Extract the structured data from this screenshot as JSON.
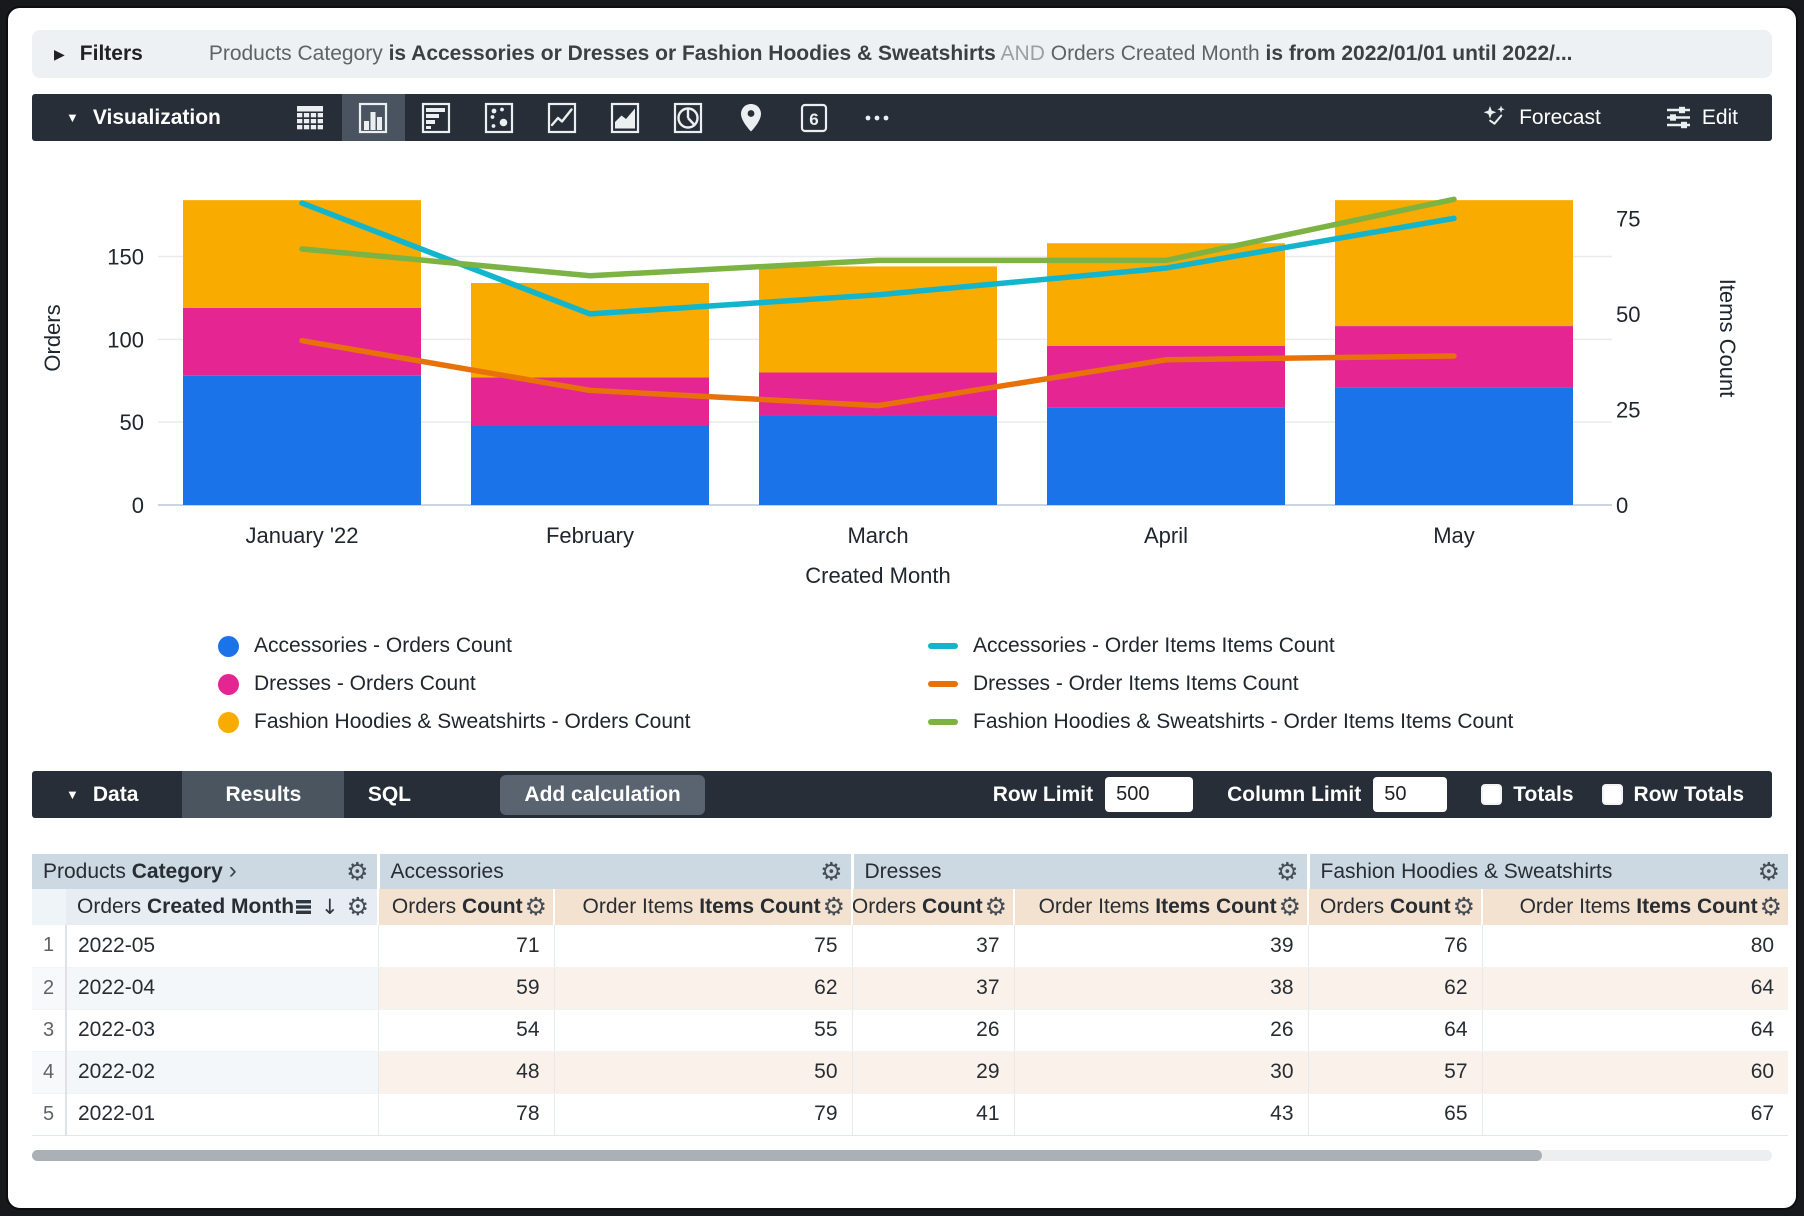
{
  "filters": {
    "label": "Filters",
    "segments": [
      {
        "text": "Products Category ",
        "style": "normal"
      },
      {
        "text": "is Accessories or Dresses or Fashion Hoodies & Sweatshirts",
        "style": "bold"
      },
      {
        "text": " AND ",
        "style": "dim"
      },
      {
        "text": "Orders Created Month ",
        "style": "normal"
      },
      {
        "text": "is from 2022/01/01 until 2022/...",
        "style": "bold"
      }
    ]
  },
  "viz_toolbar": {
    "title": "Visualization",
    "icons": [
      {
        "name": "table-chart-icon",
        "selected": false
      },
      {
        "name": "column-chart-icon",
        "selected": true
      },
      {
        "name": "bar-chart-icon",
        "selected": false
      },
      {
        "name": "scatter-chart-icon",
        "selected": false
      },
      {
        "name": "line-chart-icon",
        "selected": false
      },
      {
        "name": "area-chart-icon",
        "selected": false
      },
      {
        "name": "pie-chart-icon",
        "selected": false
      },
      {
        "name": "map-pin-icon",
        "selected": false
      },
      {
        "name": "single-value-icon",
        "selected": false
      },
      {
        "name": "more-viz-types-icon",
        "selected": false
      }
    ],
    "forecast_label": "Forecast",
    "edit_label": "Edit"
  },
  "chart_data": {
    "type": "combo: stacked bar (left axis) + line (right axis)",
    "categories": [
      "January '22",
      "February",
      "March",
      "April",
      "May"
    ],
    "x_axis_label": "Created Month",
    "left_axis": {
      "title": "Orders",
      "ticks": [
        0,
        50,
        100,
        150
      ],
      "max": 201.6
    },
    "right_axis": {
      "title": "Items Count",
      "ticks": [
        0,
        25,
        50,
        75
      ],
      "max": 87.4
    },
    "bar_series": [
      {
        "name": "Accessories - Orders Count",
        "color": "#1a73e8",
        "values": [
          78,
          48,
          54,
          59,
          71
        ]
      },
      {
        "name": "Dresses - Orders Count",
        "color": "#e52592",
        "values": [
          41,
          29,
          26,
          37,
          37
        ]
      },
      {
        "name": "Fashion Hoodies & Sweatshirts - Orders Count",
        "color": "#f9ab00",
        "values": [
          65,
          57,
          64,
          62,
          76
        ]
      }
    ],
    "line_series": [
      {
        "name": "Accessories - Order Items Items Count",
        "color": "#12b5cb",
        "values": [
          79,
          50,
          55,
          62,
          75
        ]
      },
      {
        "name": "Dresses - Order Items Items Count",
        "color": "#e8710a",
        "values": [
          43,
          30,
          26,
          38,
          39
        ]
      },
      {
        "name": "Fashion Hoodies & Sweatshirts - Order Items Items Count",
        "color": "#7cb342",
        "values": [
          67,
          60,
          64,
          64,
          80
        ]
      }
    ],
    "grid": "horizontal gridlines at left-axis ticks",
    "legend_position": "bottom, two columns"
  },
  "data_toolbar": {
    "title": "Data",
    "tabs": [
      {
        "label": "Results",
        "selected": true
      },
      {
        "label": "SQL",
        "selected": false
      }
    ],
    "add_calculation_label": "Add calculation",
    "row_limit_label": "Row Limit",
    "row_limit_value": "500",
    "column_limit_label": "Column Limit",
    "column_limit_value": "50",
    "totals_label": "Totals",
    "totals_checked": false,
    "row_totals_label": "Row Totals",
    "row_totals_checked": false
  },
  "table": {
    "dimension_group": {
      "normal": "Products ",
      "bold": "Category"
    },
    "measure_groups": [
      "Accessories",
      "Dresses",
      "Fashion Hoodies & Sweatshirts"
    ],
    "dimension_header": {
      "normal": "Orders ",
      "bold": "Created Month"
    },
    "measure_headers": [
      {
        "normal": "Orders ",
        "bold": "Count"
      },
      {
        "normal": "Order Items ",
        "bold": "Items Count"
      }
    ],
    "rows": [
      {
        "num": "1",
        "dim": "2022-05",
        "values": [
          71,
          75,
          37,
          39,
          76,
          80
        ]
      },
      {
        "num": "2",
        "dim": "2022-04",
        "values": [
          59,
          62,
          37,
          38,
          62,
          64
        ]
      },
      {
        "num": "3",
        "dim": "2022-03",
        "values": [
          54,
          55,
          26,
          26,
          64,
          64
        ]
      },
      {
        "num": "4",
        "dim": "2022-02",
        "values": [
          48,
          50,
          29,
          30,
          57,
          60
        ]
      },
      {
        "num": "5",
        "dim": "2022-01",
        "values": [
          78,
          79,
          41,
          43,
          65,
          67
        ]
      }
    ]
  },
  "colors": {
    "accent_blue": "#1a73e8",
    "accent_pink": "#e52592",
    "accent_amber": "#f9ab00",
    "accent_cyan": "#12b5cb",
    "accent_orange": "#e8710a",
    "accent_green": "#7cb342",
    "toolbar_dark": "#272e37",
    "header_group_bg": "#ccd8e2",
    "header_dim_bg": "#e7edf3",
    "header_measure_bg": "#f4e2d0"
  }
}
